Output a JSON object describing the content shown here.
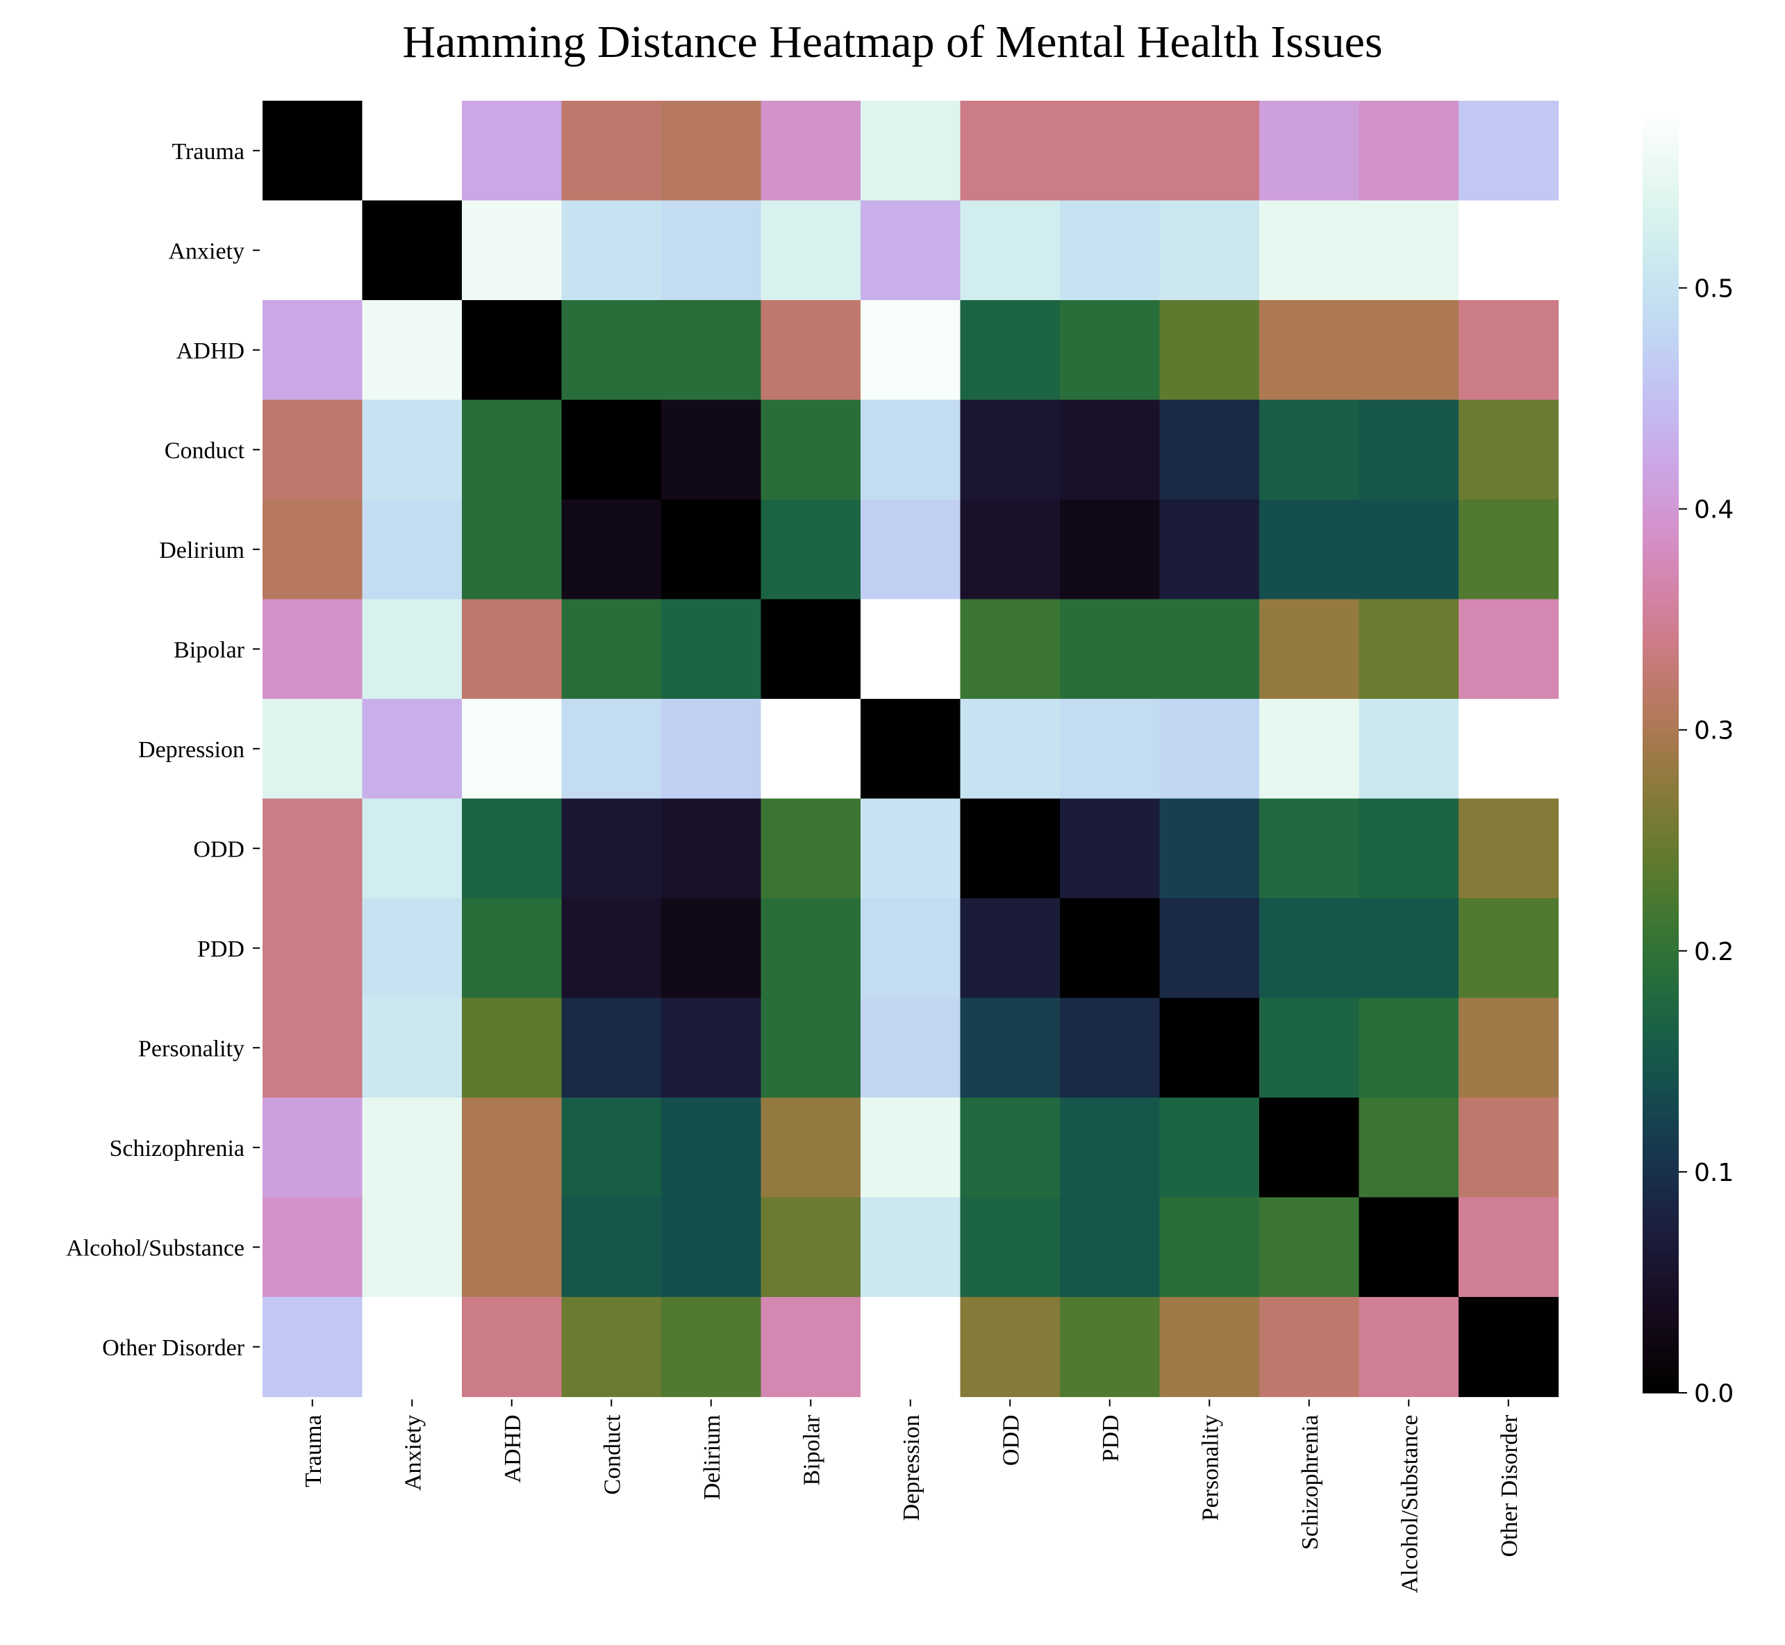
{
  "chart_data": {
    "type": "heatmap",
    "title": "Hamming Distance Heatmap of Mental Health Issues",
    "xlabel": "",
    "ylabel": "",
    "categories": [
      "Trauma",
      "Anxiety",
      "ADHD",
      "Conduct",
      "Delirium",
      "Bipolar",
      "Depression",
      "ODD",
      "PDD",
      "Personality",
      "Schizophrenia",
      "Alcohol/Substance",
      "Other Disorder"
    ],
    "values": [
      [
        0.0,
        0.58,
        0.42,
        0.32,
        0.31,
        0.39,
        0.54,
        0.34,
        0.34,
        0.34,
        0.41,
        0.39,
        0.46
      ],
      [
        0.58,
        0.0,
        0.56,
        0.5,
        0.49,
        0.53,
        0.43,
        0.52,
        0.5,
        0.51,
        0.55,
        0.55,
        0.58
      ],
      [
        0.42,
        0.56,
        0.0,
        0.19,
        0.19,
        0.32,
        0.57,
        0.17,
        0.19,
        0.24,
        0.3,
        0.3,
        0.34
      ],
      [
        0.32,
        0.5,
        0.19,
        0.0,
        0.03,
        0.19,
        0.49,
        0.06,
        0.05,
        0.09,
        0.16,
        0.15,
        0.25
      ],
      [
        0.31,
        0.49,
        0.19,
        0.03,
        0.0,
        0.17,
        0.47,
        0.05,
        0.03,
        0.07,
        0.14,
        0.14,
        0.23
      ],
      [
        0.39,
        0.53,
        0.32,
        0.19,
        0.17,
        0.0,
        0.58,
        0.21,
        0.19,
        0.19,
        0.28,
        0.25,
        0.37
      ],
      [
        0.54,
        0.43,
        0.57,
        0.49,
        0.47,
        0.58,
        0.0,
        0.5,
        0.49,
        0.48,
        0.55,
        0.51,
        0.58
      ],
      [
        0.34,
        0.52,
        0.17,
        0.06,
        0.05,
        0.21,
        0.5,
        0.0,
        0.07,
        0.12,
        0.18,
        0.17,
        0.27
      ],
      [
        0.34,
        0.5,
        0.19,
        0.05,
        0.03,
        0.19,
        0.49,
        0.07,
        0.0,
        0.09,
        0.15,
        0.15,
        0.23
      ],
      [
        0.34,
        0.51,
        0.24,
        0.09,
        0.07,
        0.19,
        0.48,
        0.12,
        0.09,
        0.0,
        0.17,
        0.19,
        0.29
      ],
      [
        0.41,
        0.55,
        0.3,
        0.16,
        0.14,
        0.28,
        0.55,
        0.18,
        0.15,
        0.17,
        0.0,
        0.21,
        0.32
      ],
      [
        0.39,
        0.55,
        0.3,
        0.15,
        0.14,
        0.25,
        0.51,
        0.17,
        0.15,
        0.19,
        0.21,
        0.0,
        0.35
      ],
      [
        0.46,
        0.58,
        0.34,
        0.25,
        0.23,
        0.37,
        0.58,
        0.27,
        0.23,
        0.29,
        0.32,
        0.35,
        0.0
      ]
    ],
    "colormap": "cubehelix",
    "vmin": 0.0,
    "vmax": 0.58,
    "colorbar_ticks": [
      "0.0",
      "0.1",
      "0.2",
      "0.3",
      "0.4",
      "0.5"
    ],
    "grid": false,
    "legend": "colorbar-right"
  }
}
